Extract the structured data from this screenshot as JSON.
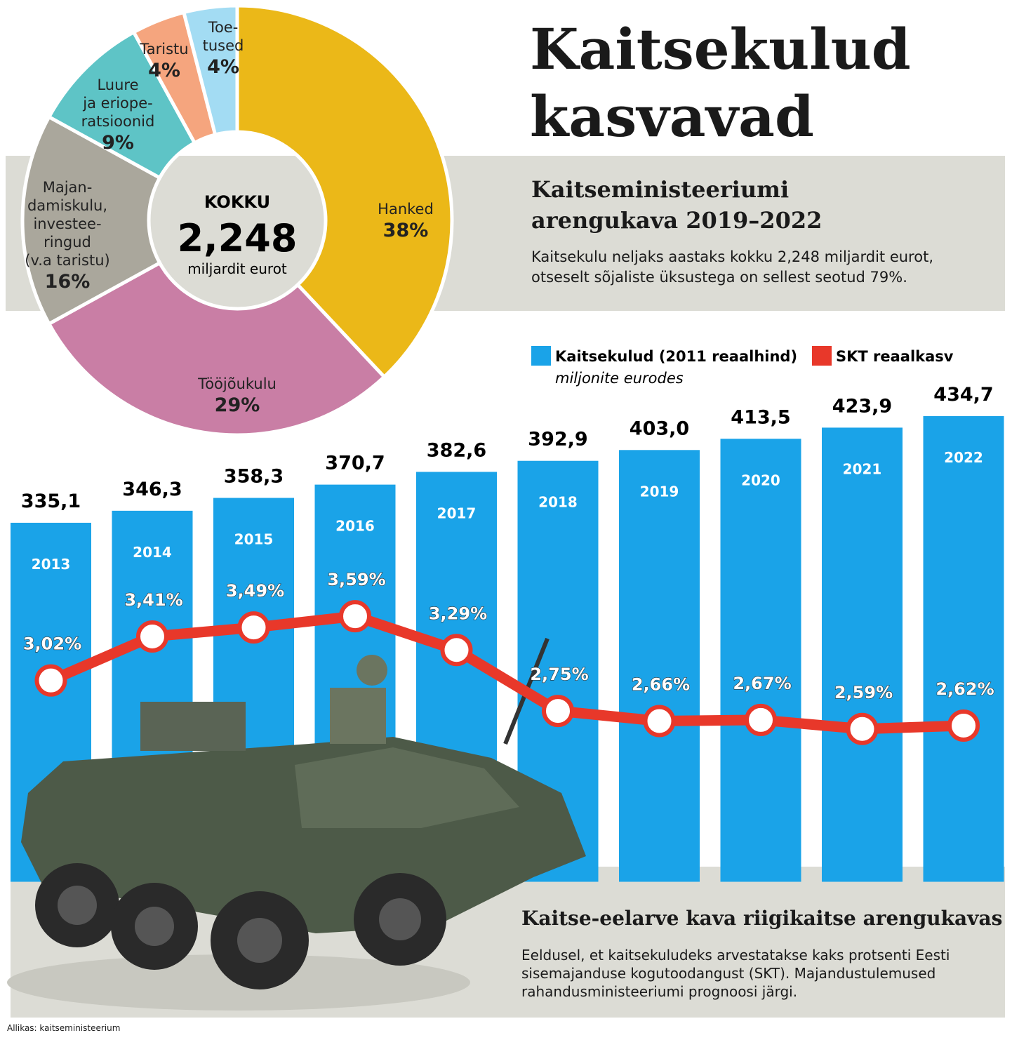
{
  "title": "Kaitsekulud kasvavad",
  "subtitle": "Kaitseministeeriumi arengukava 2019–2022",
  "description": "Kaitsekulu neljaks aastaks kokku 2,248 miljardit eurot, otseselt sõjaliste üksustega on sellest seotud 79%.",
  "note_title": "Kaitse-eelarve kava riigikaitse arengukavas",
  "note_text": "Eeldusel, et kaitsekuludeks arvestatakse kaks protsenti Eesti sisemajanduse kogutoodangust (SKT). Majandustulemused rahandusministeeriumi prognoosi järgi.",
  "source": "Allikas: kaitseministeerium",
  "chart_data": [
    {
      "type": "pie",
      "center_title": "KOKKU",
      "center_value": "2,248",
      "center_unit": "miljardit eurot",
      "categories": [
        "Hanked",
        "Tööjõukulu",
        "Majan-\ndamiskulu,\ninvestee-\nringud\n(v.a taristu)",
        "Luure\nja eriope-\nratsioonid",
        "Taristu",
        "Toe-\ntused"
      ],
      "values": [
        38,
        29,
        16,
        9,
        4,
        4
      ],
      "value_labels": [
        "38%",
        "29%",
        "16%",
        "9%",
        "4%",
        "4%"
      ],
      "colors": [
        "#ebb818",
        "#c97ea5",
        "#aaa79c",
        "#5ec4c6",
        "#f5a57e",
        "#a3dcf3"
      ]
    },
    {
      "type": "bar_line",
      "unit": "miljonite eurodes",
      "categories": [
        "2013",
        "2014",
        "2015",
        "2016",
        "2017",
        "2018",
        "2019",
        "2020",
        "2021",
        "2022"
      ],
      "series": [
        {
          "name": "Kaitsekulud (2011 reaalhind)",
          "color": "#1aa3e8",
          "type": "bar",
          "values": [
            335.1,
            346.3,
            358.3,
            370.7,
            382.6,
            392.9,
            403.0,
            413.5,
            423.9,
            434.7
          ],
          "value_labels": [
            "335,1",
            "346,3",
            "358,3",
            "370,7",
            "382,6",
            "392,9",
            "403,0",
            "413,5",
            "423,9",
            "434,7"
          ]
        },
        {
          "name": "SKT reaalkasv",
          "color": "#e8382a",
          "type": "line",
          "axis": "y2",
          "values": [
            3.02,
            3.41,
            3.49,
            3.59,
            3.29,
            2.75,
            2.66,
            2.67,
            2.59,
            2.62
          ],
          "value_labels": [
            "3,02%",
            "3,41%",
            "3,49%",
            "3,59%",
            "3,29%",
            "2,75%",
            "2,66%",
            "2,67%",
            "2,59%",
            "2,62%"
          ]
        }
      ],
      "ylim": [
        -130,
        470
      ],
      "y2lim": [
        0,
        5.7
      ]
    }
  ]
}
